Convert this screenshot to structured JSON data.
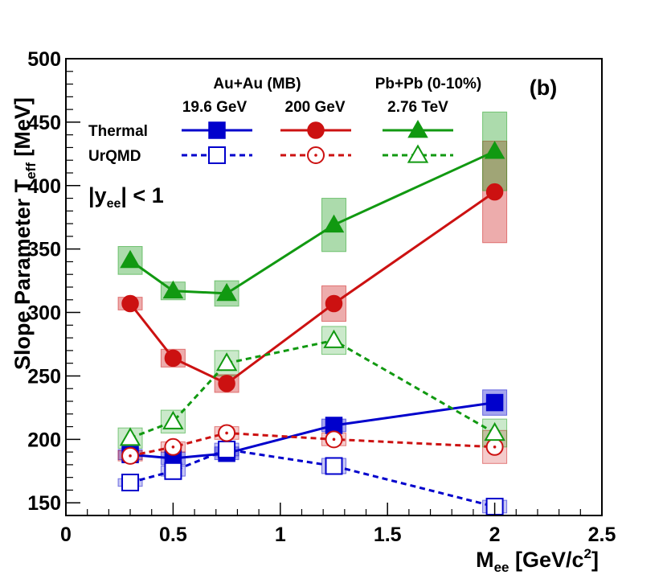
{
  "chart_data": {
    "type": "line",
    "panel_label": "(b)",
    "xlabel": {
      "main": "M",
      "sub": "ee",
      "rest": " [GeV/c",
      "sup": "2",
      "close": "]"
    },
    "ylabel": {
      "main": "Slope Parameter T",
      "sub": "eff",
      "rest": " [MeV]"
    },
    "xlim": [
      0,
      2.5
    ],
    "ylim": [
      140,
      500
    ],
    "x_ticks": [
      {
        "v": 0,
        "label": "0"
      },
      {
        "v": 0.5,
        "label": "0.5"
      },
      {
        "v": 1,
        "label": "1"
      },
      {
        "v": 1.5,
        "label": "1.5"
      },
      {
        "v": 2,
        "label": "2"
      },
      {
        "v": 2.5,
        "label": "2.5"
      }
    ],
    "y_ticks": [
      {
        "v": 150,
        "label": "150"
      },
      {
        "v": 200,
        "label": "200"
      },
      {
        "v": 250,
        "label": "250"
      },
      {
        "v": 300,
        "label": "300"
      },
      {
        "v": 350,
        "label": "350"
      },
      {
        "v": 400,
        "label": "400"
      },
      {
        "v": 450,
        "label": "450"
      },
      {
        "v": 500,
        "label": "500"
      }
    ],
    "legend": {
      "system_auau": "Au+Au (MB)",
      "system_pbpb": "Pb+Pb (0-10%)",
      "energy_19": "19.6 GeV",
      "energy_200": "200 GeV",
      "energy_276": "2.76 TeV",
      "row_thermal": "Thermal",
      "row_urqmd": "UrQMD",
      "rapidity": {
        "pre": "|y",
        "sub": "ee",
        "post": "| < 1"
      }
    },
    "series": [
      {
        "name": "Thermal 19.6 GeV",
        "color": "#0000cc",
        "marker": "square",
        "filled": true,
        "dashed": false,
        "x": [
          0.3,
          0.5,
          0.75,
          1.25,
          2.0
        ],
        "y": [
          188,
          185,
          189,
          211,
          229
        ],
        "sys_err": [
          4,
          5,
          5,
          5,
          10
        ]
      },
      {
        "name": "Thermal 200 GeV",
        "color": "#cc1111",
        "marker": "circle",
        "filled": true,
        "dashed": false,
        "x": [
          0.3,
          0.5,
          0.75,
          1.25,
          2.0
        ],
        "y": [
          307,
          264,
          244,
          307,
          395
        ],
        "sys_err": [
          5,
          7,
          7,
          14,
          40
        ]
      },
      {
        "name": "Thermal 2.76 TeV",
        "color": "#119911",
        "marker": "triangle",
        "filled": true,
        "dashed": false,
        "x": [
          0.3,
          0.5,
          0.75,
          1.25,
          2.0
        ],
        "y": [
          341,
          317,
          315,
          369,
          427
        ],
        "sys_err": [
          11,
          7,
          10,
          21,
          31
        ]
      },
      {
        "name": "UrQMD 19.6 GeV",
        "color": "#0000cc",
        "marker": "square",
        "filled": false,
        "dashed": true,
        "x": [
          0.3,
          0.5,
          0.75,
          1.25,
          2.0
        ],
        "y": [
          166,
          175,
          192,
          179,
          147
        ],
        "sys_err": [
          3,
          4,
          5,
          6,
          5
        ]
      },
      {
        "name": "UrQMD 200 GeV",
        "color": "#cc1111",
        "marker": "circle",
        "filled": false,
        "dashed": true,
        "x": [
          0.3,
          0.5,
          0.75,
          1.25,
          2.0
        ],
        "y": [
          187,
          194,
          205,
          200,
          194
        ],
        "sys_err": [
          4,
          4,
          5,
          5,
          13
        ]
      },
      {
        "name": "UrQMD 2.76 TeV",
        "color": "#119911",
        "marker": "triangle",
        "filled": false,
        "dashed": true,
        "x": [
          0.3,
          0.5,
          0.75,
          1.25,
          2.0
        ],
        "y": [
          201,
          214,
          260,
          278,
          205
        ],
        "sys_err": [
          8,
          9,
          10,
          11,
          11
        ]
      }
    ]
  }
}
